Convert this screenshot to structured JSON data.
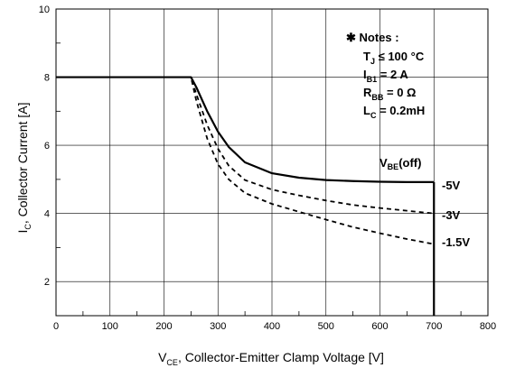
{
  "chart_data": {
    "type": "line",
    "xlabel": {
      "main": "V",
      "sub": "CE",
      "rest": ", Collector-Emitter Clamp Voltage [V]"
    },
    "ylabel": {
      "main": "I",
      "sub": "C",
      "rest": ", Collector Current [A]"
    },
    "xlim": [
      0,
      800
    ],
    "ylim": [
      1,
      10
    ],
    "x_ticks": [
      0,
      100,
      200,
      300,
      400,
      500,
      600,
      700,
      800
    ],
    "y_ticks": [
      2,
      4,
      6,
      8,
      10
    ],
    "grid": true,
    "notes": {
      "header": "✱ Notes :",
      "lines": [
        {
          "a": "T",
          "s": "J",
          "b": " ≤ 100 °C"
        },
        {
          "a": "I",
          "s": "B1",
          "b": " = 2 A"
        },
        {
          "a": "R",
          "s": "BB",
          "b": " = 0 Ω"
        },
        {
          "a": "L",
          "s": "C",
          "b": " = 0.2mH"
        }
      ]
    },
    "legend_title": {
      "a": "V",
      "s": "BE",
      "b": "(off)"
    },
    "series": [
      {
        "name": "-5V",
        "style": "solid",
        "x": [
          0,
          250,
          260,
          280,
          300,
          320,
          350,
          400,
          450,
          500,
          550,
          600,
          650,
          700
        ],
        "y": [
          8,
          8,
          7.7,
          7.0,
          6.4,
          5.95,
          5.5,
          5.18,
          5.05,
          4.98,
          4.95,
          4.93,
          4.92,
          4.92
        ]
      },
      {
        "name": "-3V",
        "style": "dashed",
        "x": [
          0,
          250,
          260,
          280,
          300,
          320,
          350,
          400,
          450,
          500,
          550,
          600,
          650,
          700
        ],
        "y": [
          8,
          8,
          7.5,
          6.6,
          5.9,
          5.4,
          4.98,
          4.7,
          4.53,
          4.38,
          4.25,
          4.16,
          4.08,
          4.0
        ]
      },
      {
        "name": "-1.5V",
        "style": "dashed",
        "x": [
          0,
          250,
          260,
          280,
          300,
          320,
          350,
          400,
          450,
          500,
          550,
          600,
          650,
          700
        ],
        "y": [
          8,
          8,
          7.3,
          6.2,
          5.45,
          5.0,
          4.6,
          4.28,
          4.05,
          3.82,
          3.6,
          3.42,
          3.25,
          3.1
        ]
      }
    ],
    "clamp_voltage": 700
  }
}
